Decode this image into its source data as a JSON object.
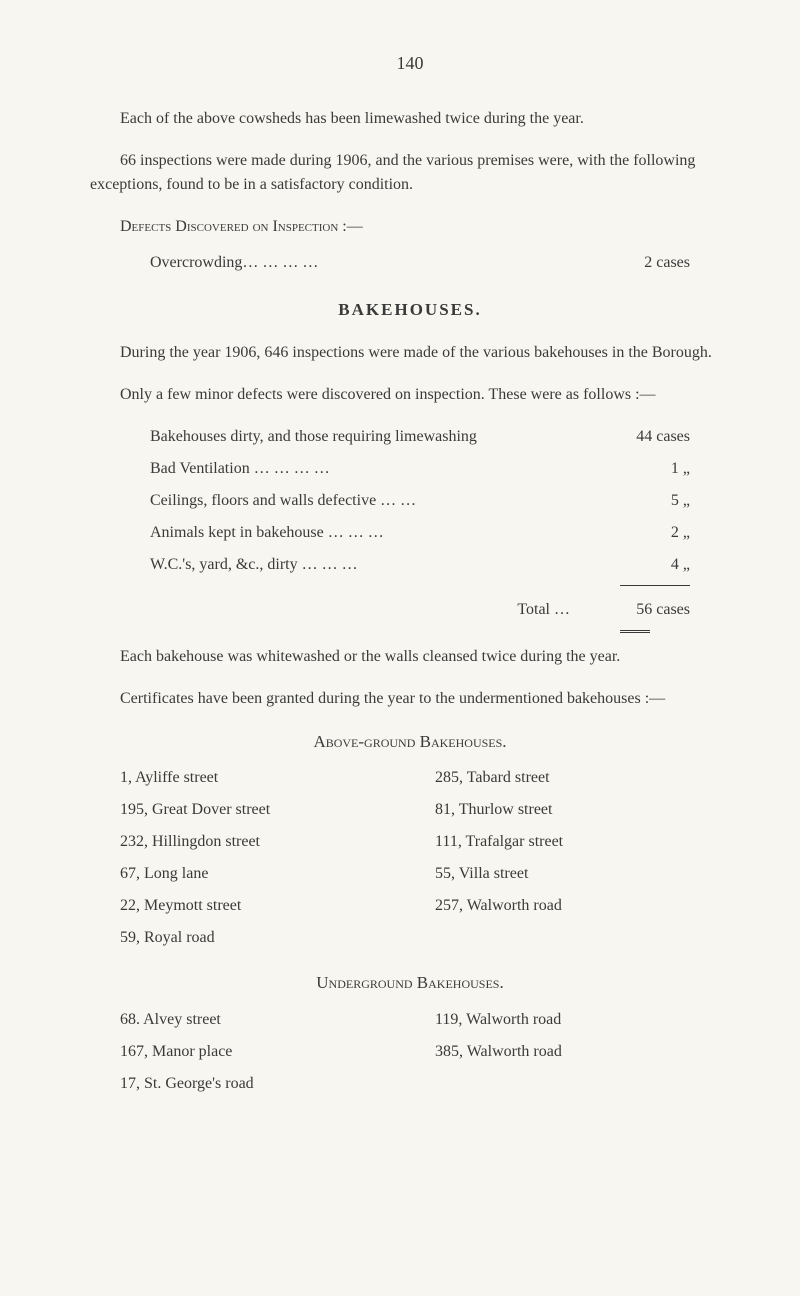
{
  "page_number": "140",
  "para1": "Each of the above cowsheds has been limewashed twice during the year.",
  "para2": "66 inspections were made during 1906, and the various premises were, with the following exceptions, found to be in a satisfactory condition.",
  "defects_heading": "Defects Discovered on Inspection :—",
  "overcrowding_label": "Overcrowding…     …     …     …",
  "overcrowding_value": "2 cases",
  "bakehouses_heading": "BAKEHOUSES.",
  "para3": "During the year 1906, 646 inspections were made of the various bakehouses in the Borough.",
  "para4": "Only a few minor defects were discovered on inspection. These were as follows :—",
  "defects": [
    {
      "label": "Bakehouses dirty, and those requiring limewashing",
      "value": "44 cases"
    },
    {
      "label": "Bad Ventilation     …     …     …     …",
      "value": "1   „"
    },
    {
      "label": "Ceilings, floors and walls defective     …     …",
      "value": "5   „"
    },
    {
      "label": "Animals kept in bakehouse     …     …     …",
      "value": "2   „"
    },
    {
      "label": "W.C.'s, yard, &c., dirty     …     …     …",
      "value": "4   „"
    }
  ],
  "total_label": "Total   …",
  "total_value": "56 cases",
  "para5": "Each bakehouse was whitewashed or the walls cleansed twice during the year.",
  "para6": "Certificates have been granted during the year to the undermentioned bakehouses :—",
  "above_ground_heading": "Above-ground Bakehouses.",
  "above_left": [
    "1, Ayliffe street",
    "195, Great Dover street",
    "232, Hillingdon street",
    "67, Long lane",
    "22, Meymott street",
    "59, Royal road"
  ],
  "above_right": [
    "285, Tabard street",
    "81, Thurlow street",
    "111, Trafalgar street",
    "55, Villa street",
    "257, Walworth road"
  ],
  "underground_heading": "Underground Bakehouses.",
  "under_left": [
    "68. Alvey street",
    "167, Manor place",
    "17, St. George's road"
  ],
  "under_right": [
    "119, Walworth road",
    "385, Walworth road"
  ]
}
